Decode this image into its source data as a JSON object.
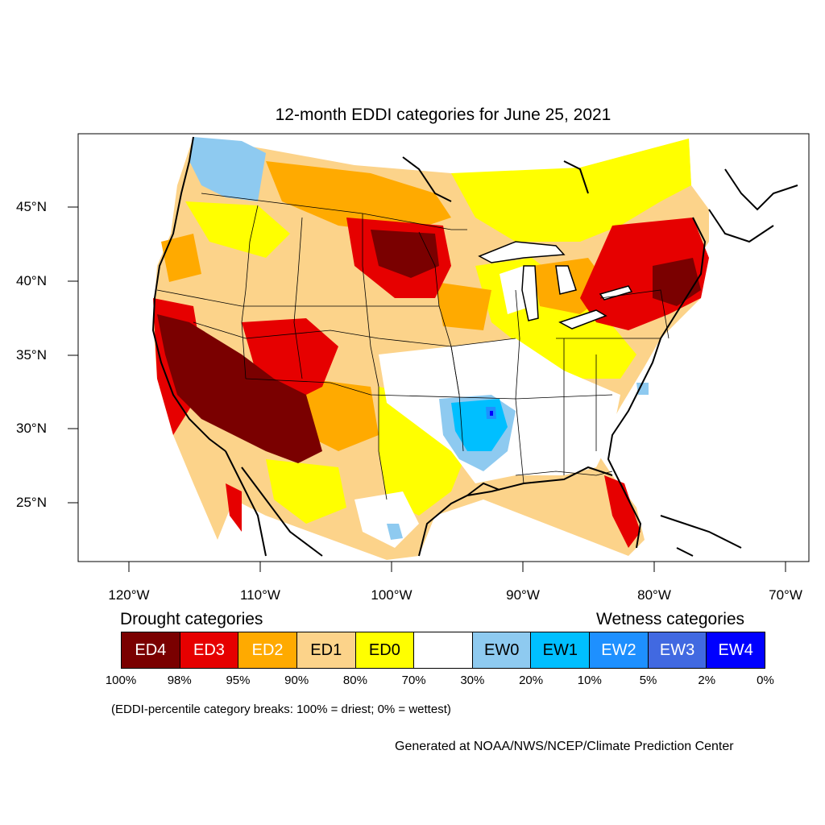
{
  "title": "12-month EDDI categories for June 25, 2021",
  "lat_labels": [
    "45°N",
    "40°N",
    "35°N",
    "30°N",
    "25°N"
  ],
  "lon_labels": [
    "120°W",
    "110°W",
    "100°W",
    "90°W",
    "80°W",
    "70°W"
  ],
  "legend": {
    "drought_title": "Drought categories",
    "wetness_title": "Wetness categories",
    "categories": [
      {
        "label": "ED4",
        "color": "#7a0000",
        "text_color": "#ffffff"
      },
      {
        "label": "ED3",
        "color": "#e60000",
        "text_color": "#ffffff"
      },
      {
        "label": "ED2",
        "color": "#ffaa00",
        "text_color": "#ffffff"
      },
      {
        "label": "ED1",
        "color": "#fcd38a",
        "text_color": "#000000"
      },
      {
        "label": "ED0",
        "color": "#ffff00",
        "text_color": "#000000"
      },
      {
        "label": "",
        "color": "#ffffff",
        "text_color": "#000000"
      },
      {
        "label": "EW0",
        "color": "#8ecaf0",
        "text_color": "#000000"
      },
      {
        "label": "EW1",
        "color": "#00bfff",
        "text_color": "#000000"
      },
      {
        "label": "EW2",
        "color": "#1e90ff",
        "text_color": "#ffffff"
      },
      {
        "label": "EW3",
        "color": "#4169e1",
        "text_color": "#ffffff"
      },
      {
        "label": "EW4",
        "color": "#0000ff",
        "text_color": "#ffffff"
      }
    ],
    "breaks": [
      "100%",
      "98%",
      "95%",
      "90%",
      "80%",
      "70%",
      "30%",
      "20%",
      "10%",
      "5%",
      "2%",
      "0%"
    ]
  },
  "footnote": "(EDDI-percentile category breaks: 100% = driest; 0% = wettest)",
  "credit": "Generated at NOAA/NWS/NCEP/Climate Prediction Center"
}
